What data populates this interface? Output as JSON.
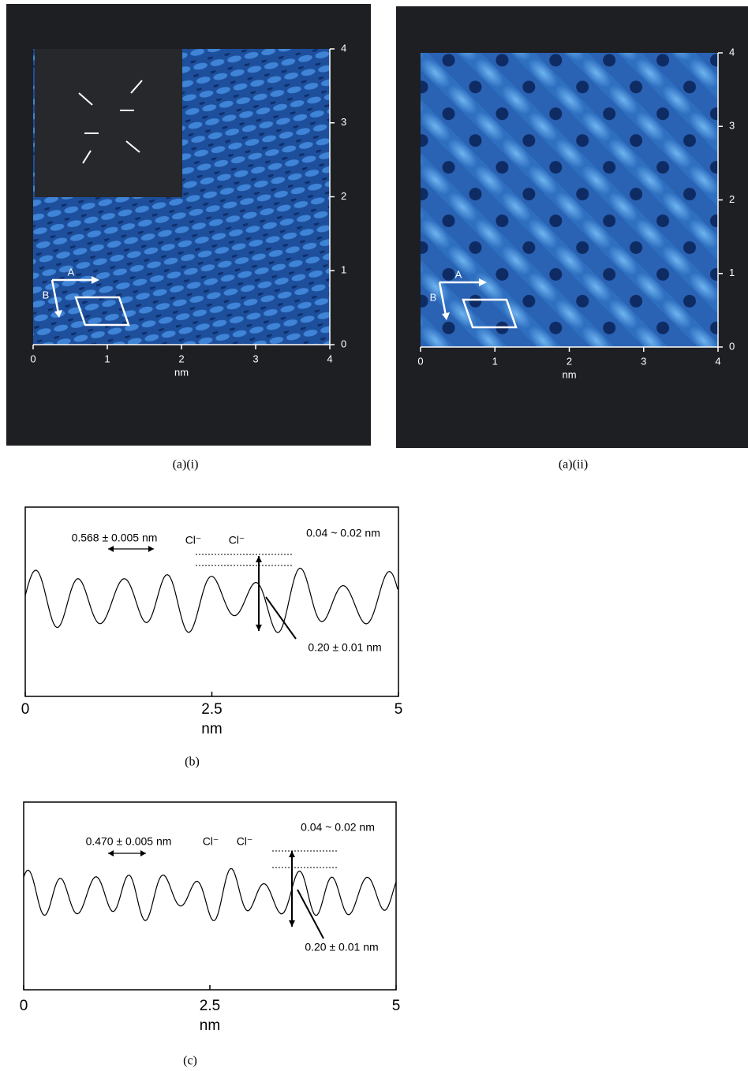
{
  "panels": [
    {
      "caption": "(a)(i)",
      "x_ticks": [
        "0",
        "1",
        "2",
        "3",
        "4"
      ],
      "y_ticks": [
        "0",
        "1",
        "2",
        "3",
        "4"
      ],
      "x_label": "nm",
      "vector_a": "A",
      "vector_b": "B"
    },
    {
      "caption": "(a)(ii)",
      "x_ticks": [
        "0",
        "1",
        "2",
        "3",
        "4"
      ],
      "y_ticks": [
        "0",
        "1",
        "2",
        "3",
        "4"
      ],
      "x_label": "nm",
      "vector_a": "A",
      "vector_b": "B"
    },
    {
      "caption": "(b)",
      "x_ticks": [
        "0",
        "2.5",
        "5"
      ],
      "x_label": "nm",
      "spacing": "0.568 ± 0.005 nm",
      "ion_1": "Cl⁻",
      "ion_2": "Cl⁻",
      "height_diff": "0.04 ~ 0.02 nm",
      "corrugation": "0.20 ± 0.01 nm"
    },
    {
      "caption": "(c)",
      "x_ticks": [
        "0",
        "2.5",
        "5"
      ],
      "x_label": "nm",
      "spacing": "0.470 ± 0.005 nm",
      "ion_1": "Cl⁻",
      "ion_2": "Cl⁻",
      "height_diff": "0.04 ~ 0.02 nm",
      "corrugation": "0.20 ± 0.01 nm"
    }
  ]
}
